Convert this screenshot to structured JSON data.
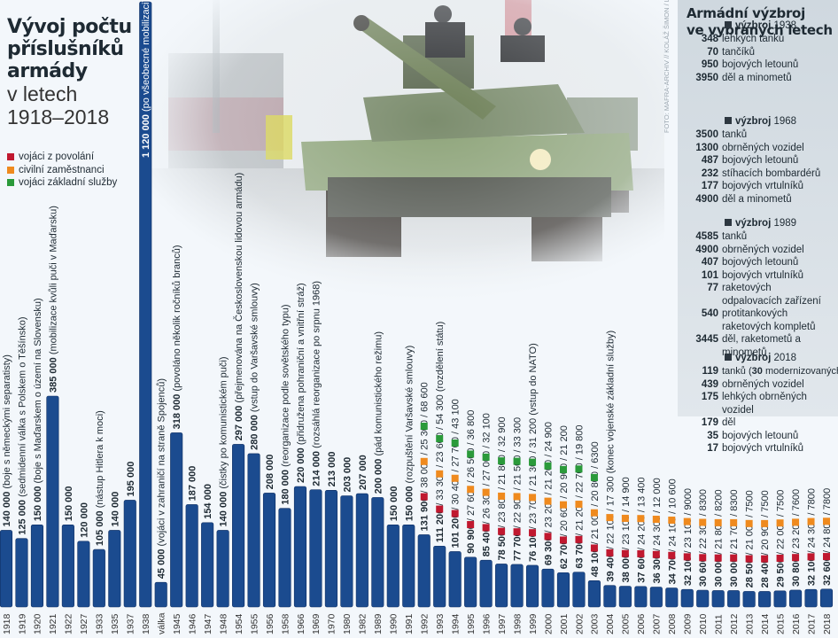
{
  "title": {
    "line1": "Vývoj počtu",
    "line2": "příslušníků",
    "line3": "armády",
    "line4": "v letech",
    "line5": "1918–2018"
  },
  "legend": [
    {
      "label": "vojáci z povolání",
      "color": "#c0182f"
    },
    {
      "label": "civilní zaměstnanci",
      "color": "#ef8a1e"
    },
    {
      "label": "vojáci základní služby",
      "color": "#2a9a3a"
    }
  ],
  "credit": "FOTO: MAFRA-ARCHIV // KOLÁŽ ŠIMON / LN",
  "armament": {
    "title_line1": "Armádní výzbroj",
    "title_line2": "ve vybraných letech",
    "sections": [
      {
        "label": "výzbroj",
        "year": "1938",
        "rows": [
          {
            "n": "348",
            "d": "lehkých tanků"
          },
          {
            "n": "70",
            "d": "tančíků"
          },
          {
            "n": "950",
            "d": "bojových letounů"
          },
          {
            "n": "3950",
            "d": "děl a minometů"
          }
        ]
      },
      {
        "label": "výzbroj",
        "year": "1968",
        "rows": [
          {
            "n": "3500",
            "d": "tanků"
          },
          {
            "n": "1300",
            "d": "obrněných vozidel"
          },
          {
            "n": "487",
            "d": "bojových letounů"
          },
          {
            "n": "232",
            "d": "stíhacích bombardérů"
          },
          {
            "n": "177",
            "d": "bojových vrtulníků"
          },
          {
            "n": "4900",
            "d": "děl a minometů"
          }
        ]
      },
      {
        "label": "výzbroj",
        "year": "1989",
        "rows": [
          {
            "n": "4585",
            "d": "tanků"
          },
          {
            "n": "4900",
            "d": "obrněných vozidel"
          },
          {
            "n": "407",
            "d": "bojových letounů"
          },
          {
            "n": "101",
            "d": "bojových vrtulníků"
          },
          {
            "n": "77",
            "d": "raketových odpalovacích zařízení"
          },
          {
            "n": "540",
            "d": "protitankových raketových kompletů"
          },
          {
            "n": "3445",
            "d": "děl, raketometů a minometů"
          }
        ]
      },
      {
        "label": "výzbroj",
        "year": "2018",
        "rows": [
          {
            "n": "119",
            "d": "tanků (",
            "bold": "30",
            "d2": " modernizovaných)"
          },
          {
            "n": "439",
            "d": "obrněných vozidel"
          },
          {
            "n": "175",
            "d": "lehkých obrněných vozidel"
          },
          {
            "n": "179",
            "d": "děl"
          },
          {
            "n": "35",
            "d": "bojových letounů"
          },
          {
            "n": "17",
            "d": "bojových vrtulníků"
          }
        ]
      }
    ]
  },
  "colors": {
    "bar": "#1b4b8f",
    "bar_edge": "#0f2f63",
    "prof": "#c0182f",
    "civ": "#ef8a1e",
    "cons": "#2a9a3a"
  },
  "chart_data": {
    "type": "bar",
    "title": "Vývoj počtu příslušníků armády v letech 1918–2018",
    "xlabel": "",
    "ylabel": "",
    "ylim": [
      0,
      1120000
    ],
    "categories": [
      "1918",
      "1919",
      "1920",
      "1921",
      "1922",
      "1927",
      "1933",
      "1935",
      "1937",
      "1938",
      "válka",
      "1945",
      "1946",
      "1947",
      "1948",
      "1954",
      "1955",
      "1956",
      "1958",
      "1966",
      "1969",
      "1970",
      "1980",
      "1982",
      "1989",
      "1990",
      "1991",
      "1992",
      "1993",
      "1994",
      "1995",
      "1996",
      "1997",
      "1998",
      "1999",
      "2000",
      "2001",
      "2002",
      "2003",
      "2004",
      "2005",
      "2006",
      "2007",
      "2008",
      "2009",
      "2010",
      "2011",
      "2012",
      "2013",
      "2014",
      "2015",
      "2016",
      "2017",
      "2018"
    ],
    "values": [
      140000,
      125000,
      150000,
      385000,
      150000,
      120000,
      105000,
      140000,
      195000,
      1120000,
      45000,
      318000,
      187000,
      154000,
      140000,
      297000,
      280000,
      208000,
      180000,
      220000,
      214000,
      213000,
      203000,
      207000,
      200000,
      150000,
      150000,
      131900,
      111200,
      101200,
      90900,
      85400,
      78500,
      77700,
      76100,
      69300,
      62700,
      63700,
      48100,
      39400,
      38000,
      37600,
      36300,
      34700,
      32100,
      30600,
      30000,
      30000,
      28500,
      28400,
      29500,
      30800,
      32100,
      32600
    ],
    "labels": [
      {
        "v": "140 000",
        "note": " (boje s německými separatisty)"
      },
      {
        "v": "125 000",
        "note": " (sedmidenní válka s Polskem o Těšínsko)"
      },
      {
        "v": "150 000",
        "note": " (boje s Maďarskem o území na Slovensku)"
      },
      {
        "v": "385 000",
        "note": " (mobilizace kvůli puči v Maďarsku)"
      },
      {
        "v": "150 000",
        "note": ""
      },
      {
        "v": "120 000",
        "note": ""
      },
      {
        "v": "105 000",
        "note": " (nástup Hitlera k moci)"
      },
      {
        "v": "140 000",
        "note": ""
      },
      {
        "v": "195 000",
        "note": ""
      },
      {
        "v": "1 120 000",
        "note": " (po všeobecné mobilizaci)"
      },
      {
        "v": "45 000",
        "note": " (vojáci v zahraničí na straně Spojenců)"
      },
      {
        "v": "318 000",
        "note": " (povoláno několik ročníků branců)"
      },
      {
        "v": "187 000",
        "note": ""
      },
      {
        "v": "154 000",
        "note": ""
      },
      {
        "v": "140 000",
        "note": " (čistky po komunistickém puči)"
      },
      {
        "v": "297 000",
        "note": " (přejmenována na Československou lidovou armádu)"
      },
      {
        "v": "280 000",
        "note": " (vstup do Varšavské smlouvy)"
      },
      {
        "v": "208 000",
        "note": ""
      },
      {
        "v": "180 000",
        "note": " (reorganizace podle sovětského typu)"
      },
      {
        "v": "220 000",
        "note": " (přidružena pohraniční a vnitřní stráž)"
      },
      {
        "v": "214 000",
        "note": " (rozsáhlá reorganizace po srpnu 1968)"
      },
      {
        "v": "213 000",
        "note": ""
      },
      {
        "v": "203 000",
        "note": ""
      },
      {
        "v": "207 000",
        "note": ""
      },
      {
        "v": "200 000",
        "note": " (pád komunistického režimu)"
      },
      {
        "v": "150 000",
        "note": ""
      },
      {
        "v": "150 000",
        "note": " (rozpuštění Varšavské smlouvy)"
      }
    ],
    "breakdown": [
      {
        "v": "131 900",
        "prof": "38 000",
        "civ": "25 300",
        "cons": "68 600",
        "note": ""
      },
      {
        "v": "111 200",
        "prof": "33 300",
        "civ": "23 600",
        "cons": "54 300",
        "note": " (rozdělení státu)"
      },
      {
        "v": "101 200",
        "prof": "30 400",
        "civ": "27 700",
        "cons": "43 100",
        "note": ""
      },
      {
        "v": "90 900",
        "prof": "27 600",
        "civ": "26 500",
        "cons": "36 800",
        "note": ""
      },
      {
        "v": "85 400",
        "prof": "26 300",
        "civ": "27 000",
        "cons": "32 100",
        "note": ""
      },
      {
        "v": "78 500",
        "prof": "23 800",
        "civ": "21 800",
        "cons": "32 900",
        "note": ""
      },
      {
        "v": "77 700",
        "prof": "22 900",
        "civ": "21 500",
        "cons": "33 300",
        "note": ""
      },
      {
        "v": "76 100",
        "prof": "23 700",
        "civ": "21 300",
        "cons": "31 200",
        "note": " (vstup do NATO)"
      },
      {
        "v": "69 300",
        "prof": "23 200",
        "civ": "21 200",
        "cons": "24 900",
        "note": ""
      },
      {
        "v": "62 700",
        "prof": "20 600",
        "civ": "20 900",
        "cons": "21 200",
        "note": ""
      },
      {
        "v": "63 700",
        "prof": "21 200",
        "civ": "22 700",
        "cons": "19 800",
        "note": ""
      },
      {
        "v": "48 100",
        "prof": "21 000",
        "civ": "20 800",
        "cons": "6300",
        "note": ""
      },
      {
        "v": "39 400",
        "prof": "22 100",
        "civ": "17 300",
        "cons": "",
        "note": " (konec vojenské základní služby)"
      },
      {
        "v": "38 000",
        "prof": "23 100",
        "civ": "14 900",
        "cons": "",
        "note": ""
      },
      {
        "v": "37 600",
        "prof": "24 200",
        "civ": "13 400",
        "cons": "",
        "note": ""
      },
      {
        "v": "36 300",
        "prof": "24 300",
        "civ": "12 000",
        "cons": "",
        "note": ""
      },
      {
        "v": "34 700",
        "prof": "24 100",
        "civ": "10 600",
        "cons": "",
        "note": ""
      },
      {
        "v": "32 100",
        "prof": "23 100",
        "civ": "9000",
        "cons": "",
        "note": ""
      },
      {
        "v": "30 600",
        "prof": "22 300",
        "civ": "8300",
        "cons": "",
        "note": ""
      },
      {
        "v": "30 000",
        "prof": "21 800",
        "civ": "8200",
        "cons": "",
        "note": ""
      },
      {
        "v": "30 000",
        "prof": "21 700",
        "civ": "8300",
        "cons": "",
        "note": ""
      },
      {
        "v": "28 500",
        "prof": "21 000",
        "civ": "7500",
        "cons": "",
        "note": ""
      },
      {
        "v": "28 400",
        "prof": "20 900",
        "civ": "7500",
        "cons": "",
        "note": ""
      },
      {
        "v": "29 500",
        "prof": "22 000",
        "civ": "7500",
        "cons": "",
        "note": ""
      },
      {
        "v": "30 800",
        "prof": "23 200",
        "civ": "7600",
        "cons": "",
        "note": ""
      },
      {
        "v": "32 100",
        "prof": "24 300",
        "civ": "7800",
        "cons": "",
        "note": ""
      },
      {
        "v": "32 600",
        "prof": "24 800",
        "civ": "7800",
        "cons": "",
        "note": ""
      }
    ],
    "legend": [
      "vojáci z povolání",
      "civilní zaměstnanci",
      "vojáci základní služby"
    ],
    "legend_position": "top-left",
    "grid": false
  }
}
